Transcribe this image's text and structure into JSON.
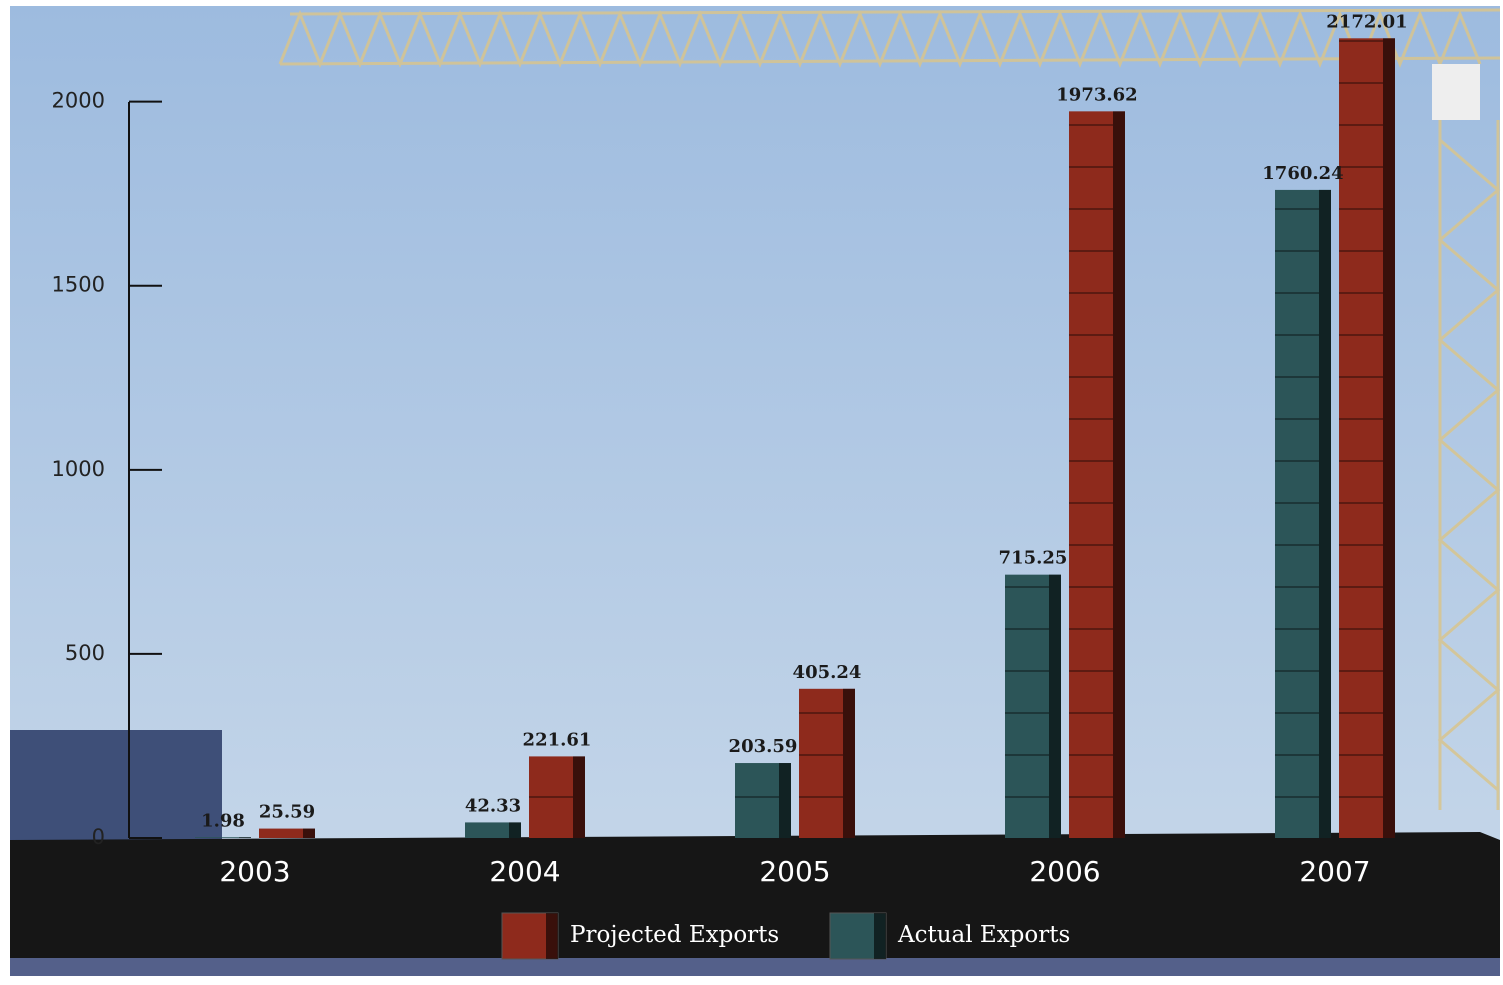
{
  "chart_data": {
    "type": "bar",
    "categories": [
      "2003",
      "2004",
      "2005",
      "2006",
      "2007"
    ],
    "series": [
      {
        "name": "Projected Exports",
        "color": "#8e2a1c",
        "values": [
          25.59,
          221.61,
          405.24,
          1973.62,
          2172.01
        ]
      },
      {
        "name": "Actual Exports",
        "color": "#2c5558",
        "values": [
          1.98,
          42.33,
          203.59,
          715.25,
          1760.24
        ]
      }
    ],
    "ylim": [
      0,
      2200
    ],
    "yticks": [
      0,
      500,
      1000,
      1500,
      2000
    ]
  }
}
